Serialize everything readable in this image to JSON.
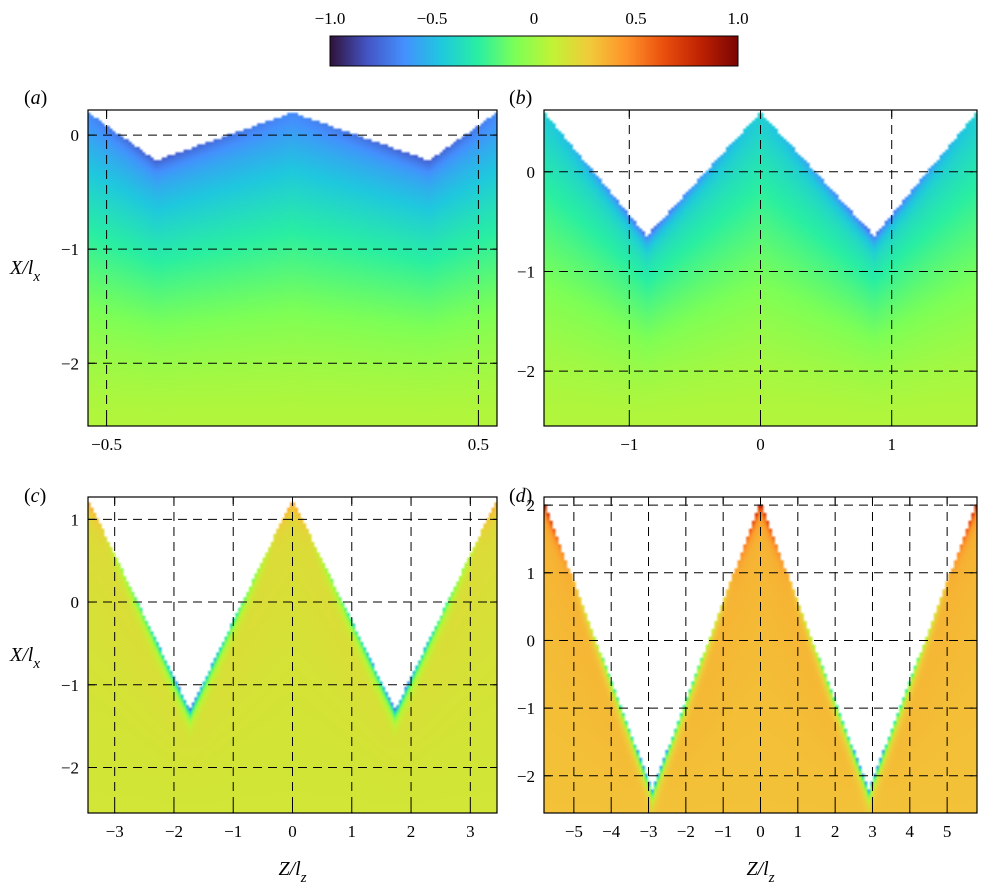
{
  "colorbar": {
    "ticks": [
      -1.0,
      -0.5,
      0,
      0.5,
      1.0
    ],
    "tick_labels": [
      "−1.0",
      "−0.5",
      "0",
      "0.5",
      "1.0"
    ],
    "range": [
      -1,
      1
    ],
    "colormap": [
      "#30123b",
      "#4454c4",
      "#4490fe",
      "#1fc8de",
      "#29efa2",
      "#7dff56",
      "#c1f334",
      "#f1ca3a",
      "#fe922a",
      "#ea4f0d",
      "#be2102",
      "#7a0403"
    ]
  },
  "chart_data": [
    {
      "type": "heatmap",
      "panel_label": "(a)",
      "ylabel": "X/l",
      "ylabel_sub": "x",
      "xlabel": "",
      "xlabel_sub": "",
      "xlim": [
        -0.55,
        0.55
      ],
      "ylim": [
        -2.55,
        0.22
      ],
      "xticks": [
        -0.5,
        0.5
      ],
      "xtick_labels": [
        "−0.5",
        "0.5"
      ],
      "yticks": [
        -2,
        -1,
        0
      ],
      "ytick_labels": [
        "−2",
        "−1",
        "0"
      ],
      "grid": true,
      "boundary": {
        "z": [
          -0.55,
          -0.3667,
          0,
          0.3667,
          0.55
        ],
        "x": [
          0.2,
          -0.22,
          0.2,
          -0.22,
          0.2
        ]
      },
      "field": {
        "top": -0.65,
        "bottom": 0.05,
        "edge_min": -0.8,
        "tip_max": -0.65
      }
    },
    {
      "type": "heatmap",
      "panel_label": "(b)",
      "ylabel": "",
      "ylabel_sub": "",
      "xlabel": "",
      "xlabel_sub": "",
      "xlim": [
        -1.65,
        1.65
      ],
      "ylim": [
        -2.55,
        0.62
      ],
      "xticks": [
        -1,
        0,
        1
      ],
      "xtick_labels": [
        "−1",
        "0",
        "1"
      ],
      "yticks": [
        -2,
        -1,
        0
      ],
      "ytick_labels": [
        "−2",
        "−1",
        "0"
      ],
      "grid": true,
      "boundary": {
        "z": [
          -1.65,
          -0.866,
          0,
          0.866,
          1.65
        ],
        "x": [
          0.6,
          -0.64,
          0.6,
          -0.64,
          0.6
        ]
      },
      "field": {
        "top": -0.45,
        "bottom": 0.05,
        "edge_min": -0.75,
        "tip_max": -0.4
      }
    },
    {
      "type": "heatmap",
      "panel_label": "(c)",
      "ylabel": "X/l",
      "ylabel_sub": "x",
      "xlabel": "Z/l",
      "xlabel_sub": "z",
      "xlim": [
        -3.45,
        3.45
      ],
      "ylim": [
        -2.55,
        1.27
      ],
      "xticks": [
        -3,
        -2,
        -1,
        0,
        1,
        2,
        3
      ],
      "xtick_labels": [
        "−3",
        "−2",
        "−1",
        "0",
        "1",
        "2",
        "3"
      ],
      "yticks": [
        -2,
        -1,
        0,
        1
      ],
      "ytick_labels": [
        "−2",
        "−1",
        "0",
        "1"
      ],
      "grid": true,
      "boundary": {
        "z": [
          -3.45,
          -1.732,
          0,
          1.732,
          3.45
        ],
        "x": [
          1.25,
          -1.3,
          1.25,
          -1.3,
          1.25
        ]
      },
      "field": {
        "top": 0.2,
        "bottom": 0.15,
        "edge_min": -0.75,
        "tip_max": 0.45
      }
    },
    {
      "type": "heatmap",
      "panel_label": "(d)",
      "ylabel": "",
      "ylabel_sub": "",
      "xlabel": "Z/l",
      "xlabel_sub": "z",
      "xlim": [
        -5.8,
        5.8
      ],
      "ylim": [
        -2.55,
        2.12
      ],
      "xticks": [
        -5,
        -4,
        -3,
        -2,
        -1,
        0,
        1,
        2,
        3,
        4,
        5
      ],
      "xtick_labels": [
        "−5",
        "−4",
        "−3",
        "−2",
        "−1",
        "0",
        "1",
        "2",
        "3",
        "4",
        "5"
      ],
      "yticks": [
        -2,
        -1,
        0,
        1,
        2
      ],
      "ytick_labels": [
        "−2",
        "−1",
        "0",
        "1",
        "2"
      ],
      "grid": true,
      "boundary": {
        "z": [
          -5.8,
          -2.9,
          0,
          2.9,
          5.8
        ],
        "x": [
          2.05,
          -2.2,
          2.05,
          -2.2,
          2.05
        ]
      },
      "field": {
        "top": 0.35,
        "bottom": 0.3,
        "edge_min": -0.7,
        "tip_max": 0.85
      }
    }
  ]
}
